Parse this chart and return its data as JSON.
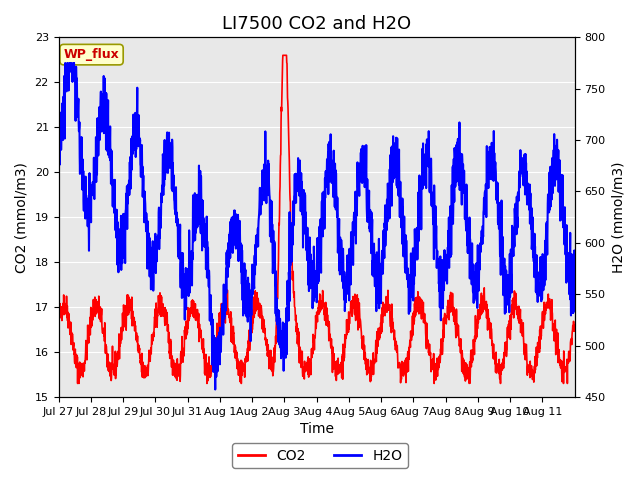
{
  "title": "LI7500 CO2 and H2O",
  "xlabel": "Time",
  "ylabel_left": "CO2 (mmol/m3)",
  "ylabel_right": "H2O (mmol/m3)",
  "co2_ylim": [
    15.0,
    23.0
  ],
  "h2o_ylim": [
    450,
    800
  ],
  "co2_yticks": [
    15.0,
    16.0,
    17.0,
    18.0,
    19.0,
    20.0,
    21.0,
    22.0,
    23.0
  ],
  "h2o_yticks": [
    450,
    500,
    550,
    600,
    650,
    700,
    750,
    800
  ],
  "co2_color": "#FF0000",
  "h2o_color": "#0000FF",
  "background_color": "#E8E8E8",
  "figure_bg": "#FFFFFF",
  "wp_flux_label": "WP_flux",
  "wp_flux_bg": "#FFFFCC",
  "wp_flux_border": "#999900",
  "wp_flux_text_color": "#CC0000",
  "legend_co2_label": "CO2",
  "legend_h2o_label": "H2O",
  "title_fontsize": 13,
  "axis_label_fontsize": 10,
  "tick_fontsize": 8,
  "legend_fontsize": 10
}
